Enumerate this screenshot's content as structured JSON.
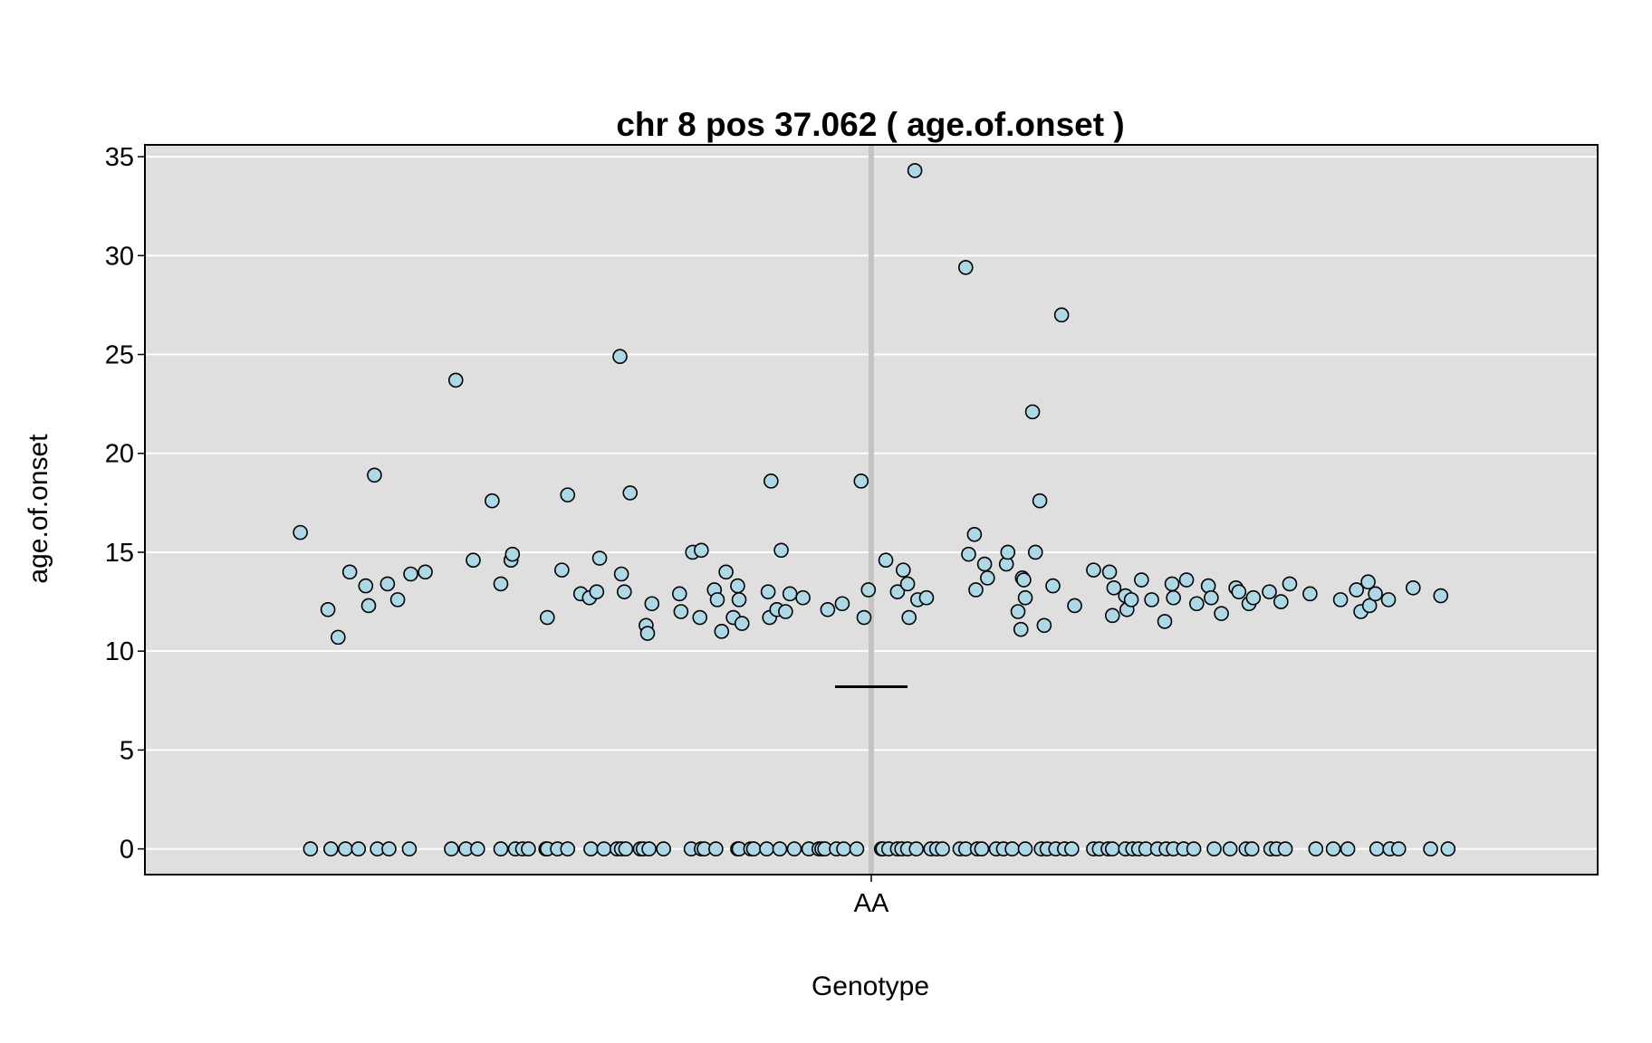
{
  "chart_data": {
    "type": "scatter",
    "title": "chr 8 pos 37.062 ( age.of.onset )",
    "xlabel": "Genotype",
    "ylabel": "age.of.onset",
    "categories": [
      "AA"
    ],
    "ylim": [
      -1.3,
      35.6
    ],
    "yticks": [
      0,
      5,
      10,
      15,
      20,
      25,
      30,
      35
    ],
    "grid": true,
    "background_color": "#dfdfdf",
    "point_color": "#add8e6",
    "mean_line_color": "#000000",
    "category_line_color": "#c4c4c4",
    "series": [
      {
        "category": "AA",
        "mean": 8.2,
        "x_jitter": [
          -0.393,
          -0.374,
          -0.367,
          -0.359,
          -0.348,
          -0.346,
          -0.342,
          -0.333,
          -0.326,
          -0.317,
          -0.307,
          -0.286,
          -0.274,
          -0.261,
          -0.255,
          -0.248,
          -0.247,
          -0.223,
          -0.213,
          -0.209,
          -0.2,
          -0.194,
          -0.189,
          -0.187,
          -0.173,
          -0.172,
          -0.17,
          -0.166,
          -0.155,
          -0.154,
          -0.151,
          -0.132,
          -0.131,
          -0.123,
          -0.118,
          -0.117,
          -0.108,
          -0.106,
          -0.103,
          -0.1,
          -0.095,
          -0.092,
          -0.091,
          -0.089,
          -0.071,
          -0.07,
          -0.069,
          -0.065,
          -0.062,
          -0.059,
          -0.056,
          -0.047,
          -0.03,
          -0.02,
          -0.007,
          -0.005,
          -0.002,
          0.01,
          0.018,
          0.022,
          0.025,
          0.026,
          0.03,
          0.032,
          0.038,
          0.065,
          0.067,
          0.071,
          0.072,
          0.078,
          0.08,
          0.093,
          0.094,
          0.101,
          0.103,
          0.104,
          0.105,
          0.106,
          0.111,
          0.113,
          0.116,
          0.119,
          0.125,
          0.131,
          0.14,
          0.153,
          0.164,
          0.166,
          0.167,
          0.175,
          0.176,
          0.179,
          0.186,
          0.193,
          0.202,
          0.207,
          0.208,
          0.217,
          0.224,
          0.232,
          0.234,
          0.241,
          0.251,
          0.253,
          0.26,
          0.263,
          0.274,
          0.282,
          0.288,
          0.302,
          0.323,
          0.334,
          0.337,
          0.342,
          0.343,
          0.347,
          0.356,
          0.373,
          0.392
        ],
        "y": [
          16.0,
          12.1,
          10.7,
          14.0,
          13.3,
          12.3,
          18.9,
          13.4,
          12.6,
          13.9,
          14.0,
          23.7,
          14.6,
          17.6,
          13.4,
          14.6,
          14.9,
          11.7,
          14.1,
          17.9,
          12.9,
          12.7,
          13.0,
          14.7,
          24.9,
          13.9,
          13.0,
          18.0,
          11.3,
          10.9,
          12.4,
          12.9,
          12.0,
          15.0,
          11.7,
          15.1,
          13.1,
          12.6,
          11.0,
          14.0,
          11.7,
          13.3,
          12.6,
          11.4,
          13.0,
          11.7,
          18.6,
          12.1,
          15.1,
          12.0,
          12.9,
          12.7,
          12.1,
          12.4,
          18.6,
          11.7,
          13.1,
          14.6,
          13.0,
          14.1,
          13.4,
          11.7,
          34.3,
          12.6,
          12.7,
          29.4,
          14.9,
          15.9,
          13.1,
          14.4,
          13.7,
          14.4,
          15.0,
          12.0,
          11.1,
          13.7,
          13.6,
          12.7,
          22.1,
          15.0,
          17.6,
          11.3,
          13.3,
          27.0,
          12.3,
          14.1,
          14.0,
          11.8,
          13.2,
          12.8,
          12.1,
          12.6,
          13.6,
          12.6,
          11.5,
          13.4,
          12.7,
          13.6,
          12.4,
          13.3,
          12.7,
          11.9,
          13.2,
          13.0,
          12.4,
          12.7,
          13.0,
          12.5,
          13.4,
          12.9,
          12.6,
          13.1,
          12.0,
          13.5,
          12.3,
          12.9,
          12.6,
          13.2,
          12.8
        ],
        "zero_x_jitter": [
          -0.386,
          -0.372,
          -0.362,
          -0.353,
          -0.34,
          -0.332,
          -0.318,
          -0.289,
          -0.279,
          -0.271,
          -0.255,
          -0.245,
          -0.24,
          -0.236,
          -0.224,
          -0.223,
          -0.216,
          -0.209,
          -0.193,
          -0.184,
          -0.175,
          -0.172,
          -0.169,
          -0.159,
          -0.157,
          -0.153,
          -0.143,
          -0.124,
          -0.117,
          -0.115,
          -0.107,
          -0.092,
          -0.091,
          -0.083,
          -0.081,
          -0.072,
          -0.063,
          -0.053,
          -0.043,
          -0.036,
          -0.034,
          -0.032,
          -0.024,
          -0.019,
          -0.01,
          0.007,
          0.008,
          0.012,
          0.018,
          0.021,
          0.025,
          0.031,
          0.041,
          0.045,
          0.049,
          0.061,
          0.065,
          0.073,
          0.076,
          0.086,
          0.091,
          0.097,
          0.106,
          0.117,
          0.121,
          0.127,
          0.133,
          0.138,
          0.153,
          0.157,
          0.163,
          0.166,
          0.175,
          0.18,
          0.184,
          0.189,
          0.197,
          0.203,
          0.208,
          0.215,
          0.222,
          0.236,
          0.247,
          0.258,
          0.262,
          0.275,
          0.279,
          0.285,
          0.306,
          0.318,
          0.328,
          0.348,
          0.357,
          0.363,
          0.385,
          0.397
        ]
      }
    ]
  }
}
